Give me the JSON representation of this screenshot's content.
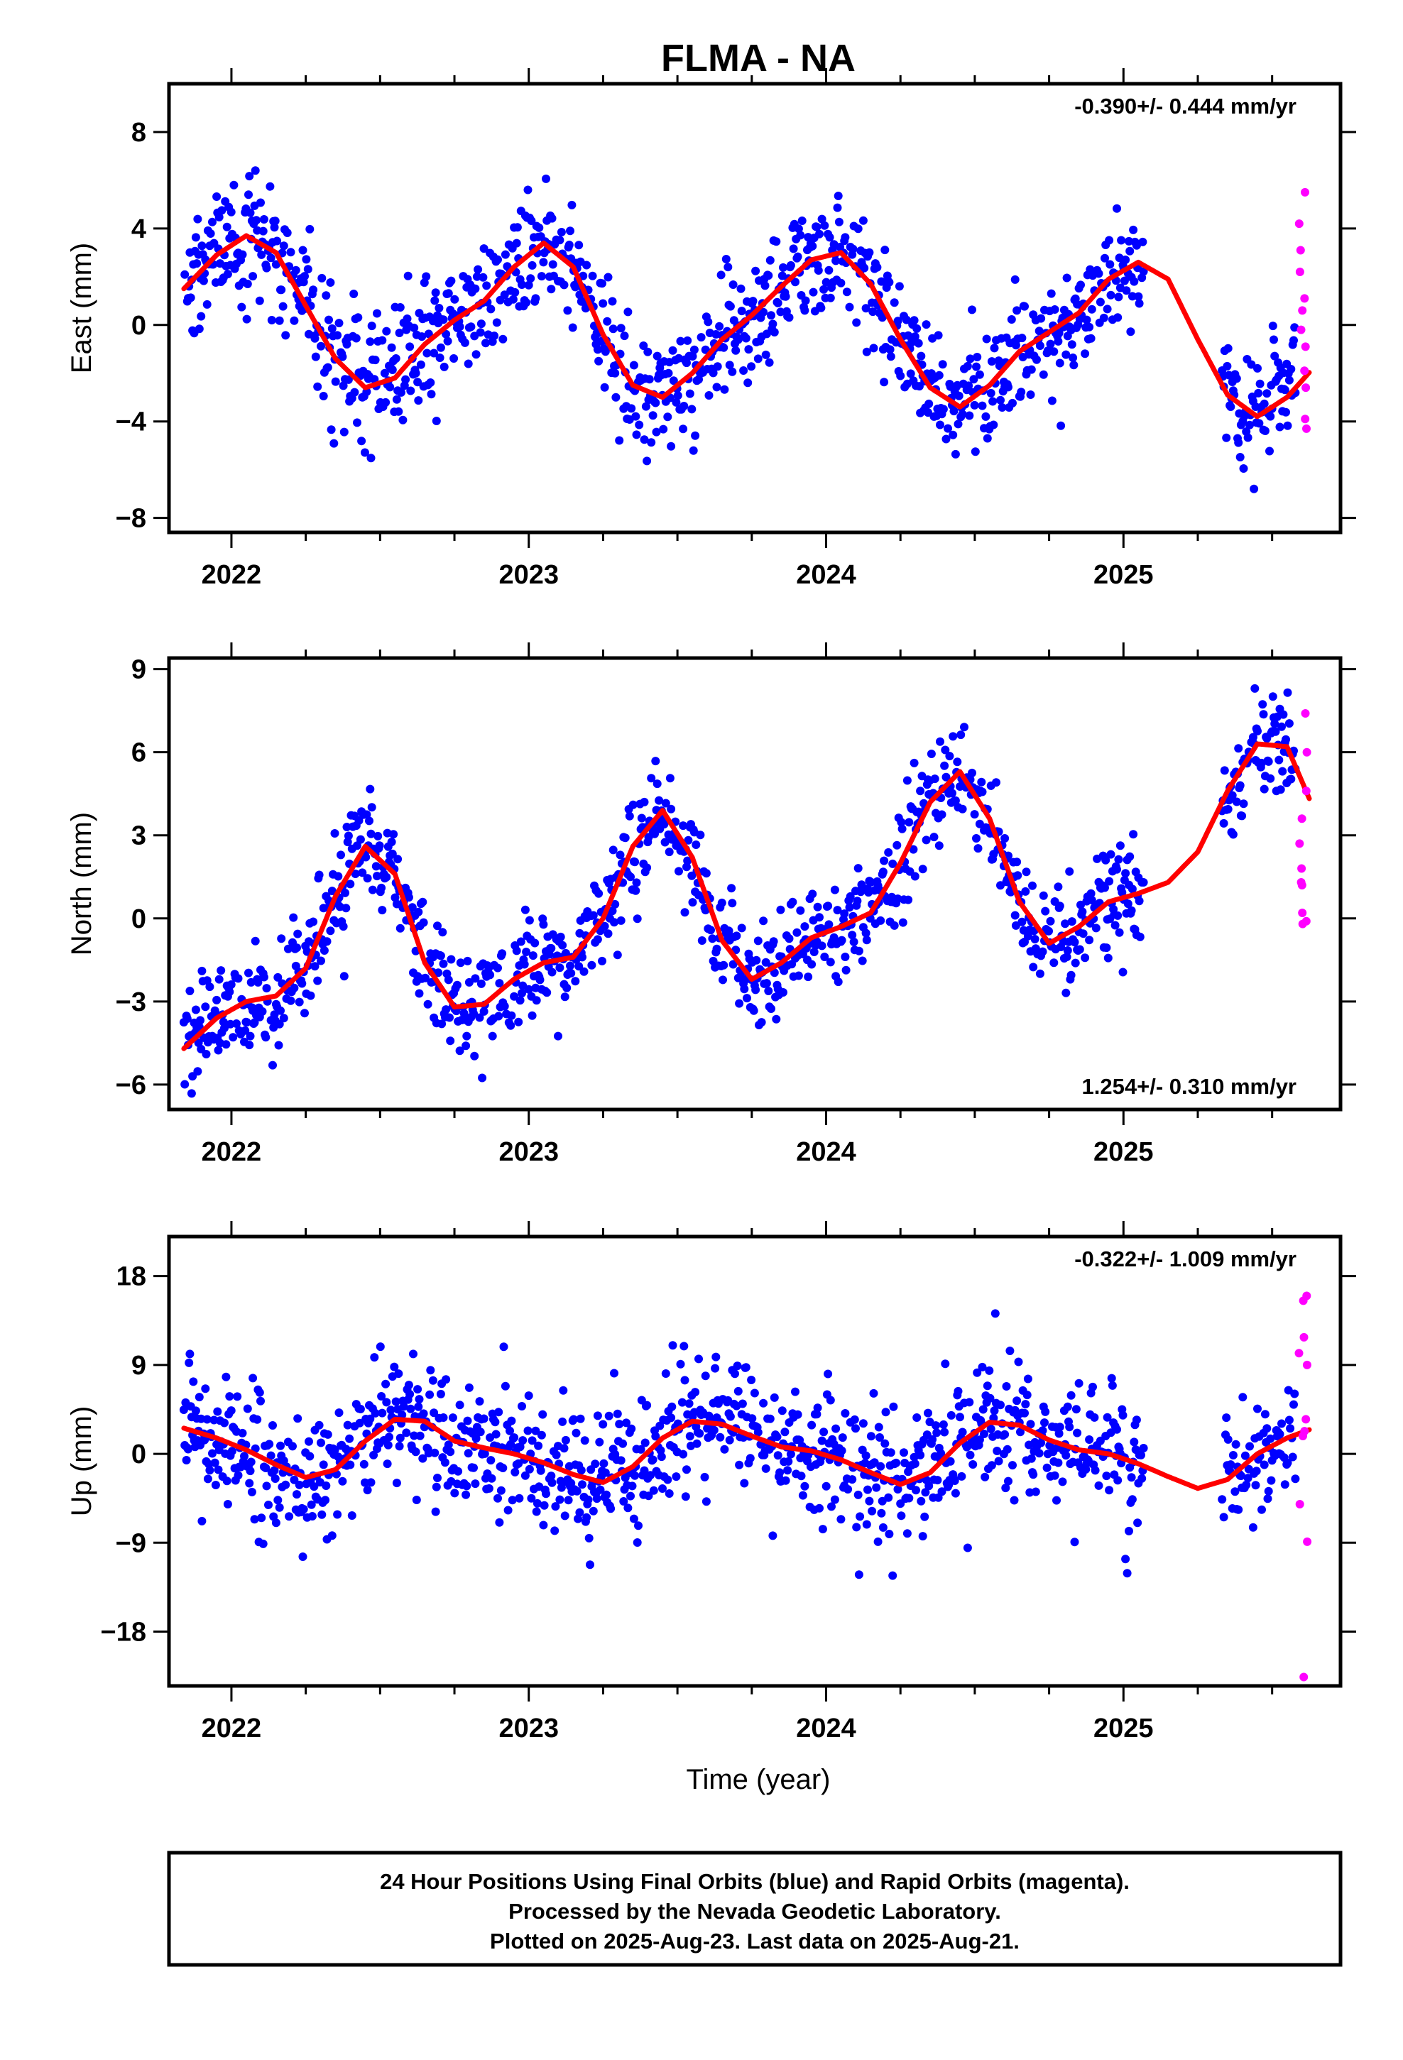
{
  "figure_title": "FLMA - NA",
  "xlabel": "Time (year)",
  "caption": {
    "line1": "24 Hour Positions Using Final Orbits (blue) and Rapid Orbits (magenta).",
    "line2": "Processed by the Nevada Geodetic Laboratory.",
    "line3": "Plotted on 2025-Aug-23. Last data on 2025-Aug-21."
  },
  "colors": {
    "final_orbits": "#0000ff",
    "rapid_orbits": "#ff00ff",
    "model_fit": "#ff0000",
    "frame": "#000000"
  },
  "chart_data": [
    {
      "type": "scatter",
      "ylabel": "East (mm)",
      "rate_text": "-0.390+/- 0.444 mm/yr",
      "xlim": [
        2021.79,
        2025.73
      ],
      "ylim": [
        -8.6,
        10.0
      ],
      "yticks": [
        8,
        4,
        0,
        -4,
        -8
      ],
      "yticklabels": [
        "8",
        "4",
        "0",
        "−4",
        "−8"
      ],
      "xticks": [
        2022,
        2023,
        2024,
        2025
      ],
      "series": [
        {
          "kind": "final",
          "x": [],
          "y": []
        },
        {
          "kind": "rapid",
          "x": [],
          "y": []
        },
        {
          "kind": "fit",
          "x": [
            2021.84,
            2021.95,
            2022.05,
            2022.15,
            2022.25,
            2022.35,
            2022.45,
            2022.55,
            2022.65,
            2022.75,
            2022.85,
            2022.95,
            2023.05,
            2023.15,
            2023.25,
            2023.35,
            2023.45,
            2023.55,
            2023.65,
            2023.75,
            2023.85,
            2023.95,
            2024.05,
            2024.15,
            2024.25,
            2024.35,
            2024.45,
            2024.55,
            2024.65,
            2024.75,
            2024.85,
            2024.95,
            2025.05,
            2025.15,
            2025.25,
            2025.35,
            2025.45,
            2025.55,
            2025.63
          ],
          "y": [
            1.5,
            2.9,
            3.7,
            3.0,
            0.8,
            -1.4,
            -2.6,
            -2.2,
            -0.8,
            0.2,
            1.0,
            2.4,
            3.4,
            2.4,
            -0.4,
            -2.5,
            -3.0,
            -2.0,
            -0.6,
            0.4,
            1.6,
            2.7,
            3.0,
            1.7,
            -0.6,
            -2.6,
            -3.4,
            -2.5,
            -1.1,
            -0.3,
            0.5,
            1.9,
            2.6,
            1.9,
            -0.6,
            -2.9,
            -3.8,
            -3.0,
            -1.9
          ]
        }
      ]
    },
    {
      "type": "scatter",
      "ylabel": "North (mm)",
      "rate_text": "1.254+/- 0.310 mm/yr",
      "xlim": [
        2021.79,
        2025.73
      ],
      "ylim": [
        -6.9,
        9.4
      ],
      "yticks": [
        9,
        6,
        3,
        0,
        -3,
        -6
      ],
      "yticklabels": [
        "9",
        "6",
        "3",
        "0",
        "−3",
        "−6"
      ],
      "xticks": [
        2022,
        2023,
        2024,
        2025
      ],
      "series": [
        {
          "kind": "final",
          "x": [],
          "y": []
        },
        {
          "kind": "rapid",
          "x": [],
          "y": []
        },
        {
          "kind": "fit",
          "x": [
            2021.84,
            2021.95,
            2022.05,
            2022.15,
            2022.25,
            2022.35,
            2022.45,
            2022.55,
            2022.65,
            2022.75,
            2022.85,
            2022.95,
            2023.05,
            2023.15,
            2023.25,
            2023.35,
            2023.45,
            2023.55,
            2023.65,
            2023.75,
            2023.85,
            2023.95,
            2024.05,
            2024.15,
            2024.25,
            2024.35,
            2024.45,
            2024.55,
            2024.65,
            2024.75,
            2024.85,
            2024.95,
            2025.05,
            2025.15,
            2025.25,
            2025.35,
            2025.45,
            2025.55,
            2025.63
          ],
          "y": [
            -4.7,
            -3.6,
            -3.0,
            -2.8,
            -1.8,
            0.8,
            2.6,
            1.6,
            -1.6,
            -3.2,
            -3.1,
            -2.2,
            -1.6,
            -1.4,
            0.0,
            2.6,
            3.9,
            2.2,
            -0.8,
            -2.2,
            -1.6,
            -0.7,
            -0.3,
            0.2,
            2.0,
            4.2,
            5.3,
            3.6,
            0.6,
            -0.9,
            -0.3,
            0.6,
            0.9,
            1.3,
            2.4,
            4.6,
            6.3,
            6.2,
            4.2
          ]
        }
      ]
    },
    {
      "type": "scatter",
      "ylabel": "Up (mm)",
      "rate_text": "-0.322+/- 1.009 mm/yr",
      "xlim": [
        2021.79,
        2025.73
      ],
      "ylim": [
        -23.5,
        22.0
      ],
      "yticks": [
        18,
        9,
        0,
        -9,
        -18
      ],
      "yticklabels": [
        "18",
        "9",
        "0",
        "−9",
        "−18"
      ],
      "xticks": [
        2022,
        2023,
        2024,
        2025
      ],
      "series": [
        {
          "kind": "final",
          "x": [],
          "y": []
        },
        {
          "kind": "rapid",
          "x": [],
          "y": []
        },
        {
          "kind": "fit",
          "x": [
            2021.84,
            2021.95,
            2022.05,
            2022.15,
            2022.25,
            2022.35,
            2022.45,
            2022.55,
            2022.65,
            2022.75,
            2022.85,
            2022.95,
            2023.05,
            2023.15,
            2023.25,
            2023.35,
            2023.45,
            2023.55,
            2023.65,
            2023.75,
            2023.85,
            2023.95,
            2024.05,
            2024.15,
            2024.25,
            2024.35,
            2024.45,
            2024.55,
            2024.65,
            2024.75,
            2024.85,
            2024.95,
            2025.05,
            2025.15,
            2025.25,
            2025.35,
            2025.45,
            2025.55,
            2025.63
          ],
          "y": [
            2.6,
            1.6,
            0.4,
            -1.1,
            -2.4,
            -1.6,
            1.3,
            3.5,
            3.3,
            1.3,
            0.6,
            0.0,
            -0.9,
            -2.1,
            -2.9,
            -1.3,
            1.6,
            3.3,
            3.0,
            1.8,
            0.7,
            0.3,
            -0.6,
            -1.9,
            -3.1,
            -1.9,
            1.1,
            3.2,
            2.9,
            1.4,
            0.4,
            0.0,
            -1.0,
            -2.3,
            -3.5,
            -2.6,
            0.0,
            1.6,
            2.5
          ]
        }
      ]
    }
  ]
}
